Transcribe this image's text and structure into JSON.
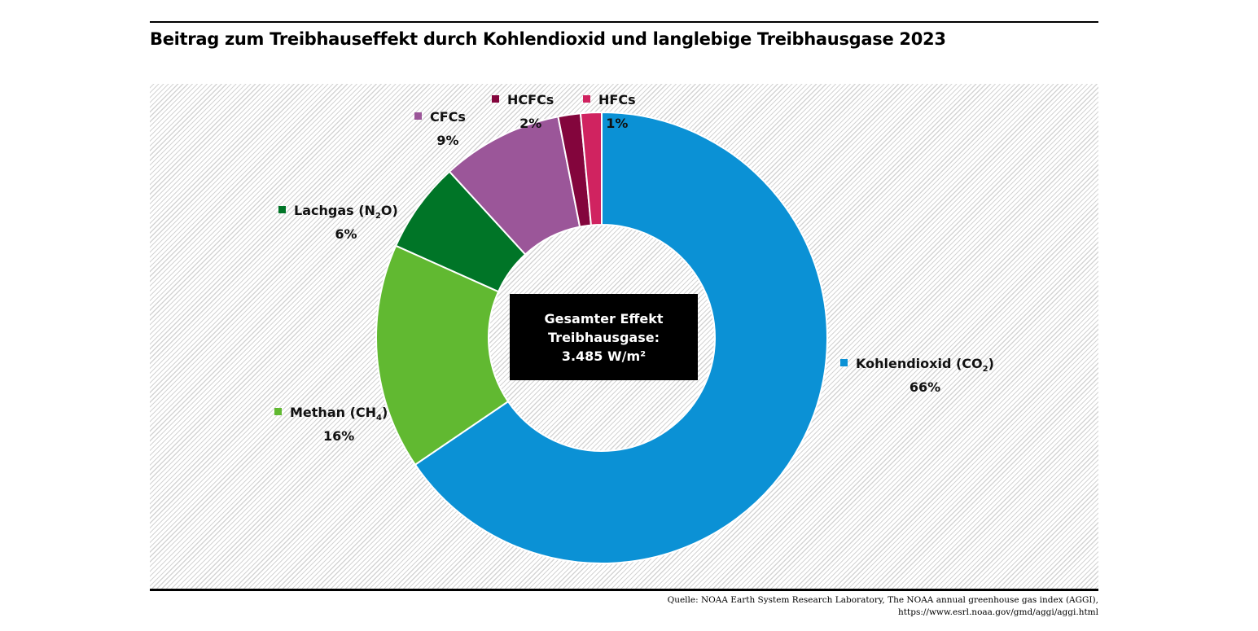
{
  "chart_data": {
    "type": "pie",
    "title": "Beitrag zum Treibhauseffekt durch Kohlendioxid und langlebige Treibhausgase 2023",
    "donut": true,
    "slices": [
      {
        "name": "Kohlendioxid (CO2)",
        "label_main": "Kohlendioxid (CO",
        "label_sub": "2",
        "label_end": ")",
        "value": 65.5,
        "pct_label": "66%",
        "color": "#0b91d5"
      },
      {
        "name": "Methan (CH4)",
        "label_main": "Methan (CH",
        "label_sub": "4",
        "label_end": ")",
        "value": 16.2,
        "pct_label": "16%",
        "color": "#61b931"
      },
      {
        "name": "Lachgas (N2O)",
        "label_main": "Lachgas (N",
        "label_sub": "2",
        "label_end": "O)",
        "value": 6.5,
        "pct_label": "6%",
        "color": "#007527"
      },
      {
        "name": "CFCs",
        "label_main": "CFCs",
        "label_sub": "",
        "label_end": "",
        "value": 8.7,
        "pct_label": "9%",
        "color": "#9b5699"
      },
      {
        "name": "HCFCs",
        "label_main": "HCFCs",
        "label_sub": "",
        "label_end": "",
        "value": 1.6,
        "pct_label": "2%",
        "color": "#83053c"
      },
      {
        "name": "HFCs",
        "label_main": "HFCs",
        "label_sub": "",
        "label_end": "",
        "value": 1.5,
        "pct_label": "1%",
        "color": "#d02360"
      }
    ],
    "center_text": [
      "Gesamter Effekt",
      "Treibhausgase:",
      "3.485 W/m²"
    ]
  },
  "source": [
    "Quelle: NOAA Earth System Research Laboratory, The NOAA annual greenhouse gas index (AGGI),",
    "https://www.esrl.noaa.gov/gmd/aggi/aggi.html"
  ]
}
